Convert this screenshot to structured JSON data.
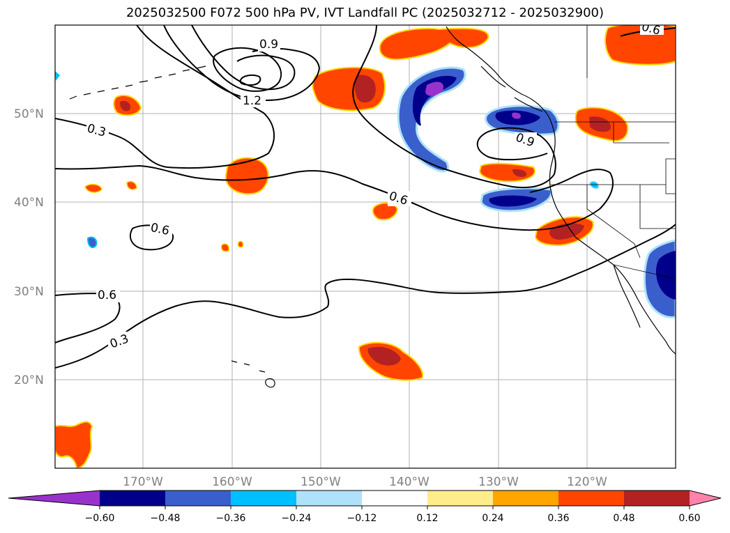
{
  "title": "2025032500 F072 500 hPa PV, IVT Landfall PC (2025032712 - 2025032900)",
  "map": {
    "lat_labels": [
      "50°N",
      "40°N",
      "30°N",
      "20°N"
    ],
    "lon_labels": [
      "170°W",
      "160°W",
      "150°W",
      "140°W",
      "130°W",
      "120°W"
    ],
    "contour_labels": [
      "0.9",
      "1.2",
      "0.3",
      "0.6",
      "0.6",
      "0.6",
      "0.9",
      "0.3",
      "0.6"
    ],
    "shading": "IVT Landfall PC",
    "contours": "500 hPa PV"
  },
  "colorbar": {
    "ticks": [
      "−0.60",
      "−0.48",
      "−0.36",
      "−0.24",
      "−0.12",
      "0.12",
      "0.24",
      "0.36",
      "0.48",
      "0.60"
    ],
    "colors": [
      "#9932cc",
      "#00008b",
      "#3a5fcd",
      "#00bfff",
      "#aee2fa",
      "#ffffff",
      "#ffec8b",
      "#ffa500",
      "#ff4500",
      "#b22222",
      "#ff82ab"
    ]
  }
}
